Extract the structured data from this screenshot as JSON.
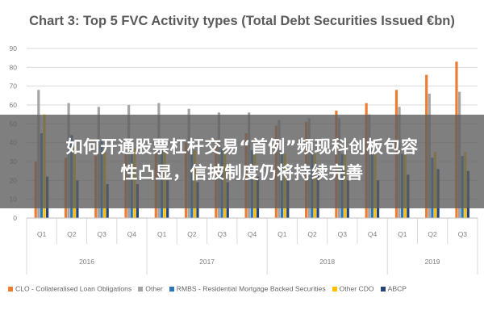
{
  "banner": {
    "line1": "如何开通股票杠杆交易“首例”频现科创板包容",
    "line2": "性凸显，信披制度仍将持续完善"
  },
  "chart_data": {
    "type": "bar",
    "title": "Chart 3: Top 5 FVC Activity types (Total Debt Securities Issued €bn)",
    "xlabel": "",
    "ylabel": "",
    "ylim": [
      0,
      90
    ],
    "yticks": [
      "0",
      "10",
      "20",
      "30",
      "40",
      "50",
      "60",
      "70",
      "80",
      "90"
    ],
    "grid": true,
    "legend_position": "bottom",
    "categories": [
      "Q1",
      "Q2",
      "Q3",
      "Q4",
      "Q1",
      "Q2",
      "Q3",
      "Q4",
      "Q1",
      "Q2",
      "Q3",
      "Q4",
      "Q1",
      "Q2",
      "Q3"
    ],
    "year_groups": [
      {
        "label": "2016",
        "start": 0,
        "count": 4
      },
      {
        "label": "2017",
        "start": 4,
        "count": 4
      },
      {
        "label": "2018",
        "start": 8,
        "count": 4
      },
      {
        "label": "2019",
        "start": 12,
        "count": 3
      }
    ],
    "series": [
      {
        "name": "CLO - Collateralised Loan Obligations",
        "color": "#ed7d31",
        "values": [
          30,
          32,
          33,
          35,
          36,
          40,
          42,
          45,
          49,
          51,
          57,
          61,
          68,
          76,
          83
        ]
      },
      {
        "name": "Other",
        "color": "#a5a5a5",
        "values": [
          68,
          61,
          59,
          60,
          61,
          58,
          56,
          56,
          52,
          53,
          53,
          55,
          59,
          66,
          67
        ]
      },
      {
        "name": "RMBS - Residential Mortgage Backed Securities",
        "color": "#2e75b6",
        "values": [
          45,
          44,
          41,
          39,
          38,
          37,
          37,
          36,
          35,
          35,
          34,
          34,
          34,
          32,
          33
        ]
      },
      {
        "name": "Other CDO",
        "color": "#ffc000",
        "values": [
          55,
          38,
          37,
          37,
          36,
          36,
          36,
          35,
          34,
          34,
          34,
          34,
          34,
          35,
          35
        ]
      },
      {
        "name": "ABCP",
        "color": "#264478",
        "values": [
          22,
          20,
          18,
          18,
          20,
          19,
          19,
          22,
          21,
          24,
          20,
          20,
          23,
          26,
          25
        ]
      }
    ]
  }
}
